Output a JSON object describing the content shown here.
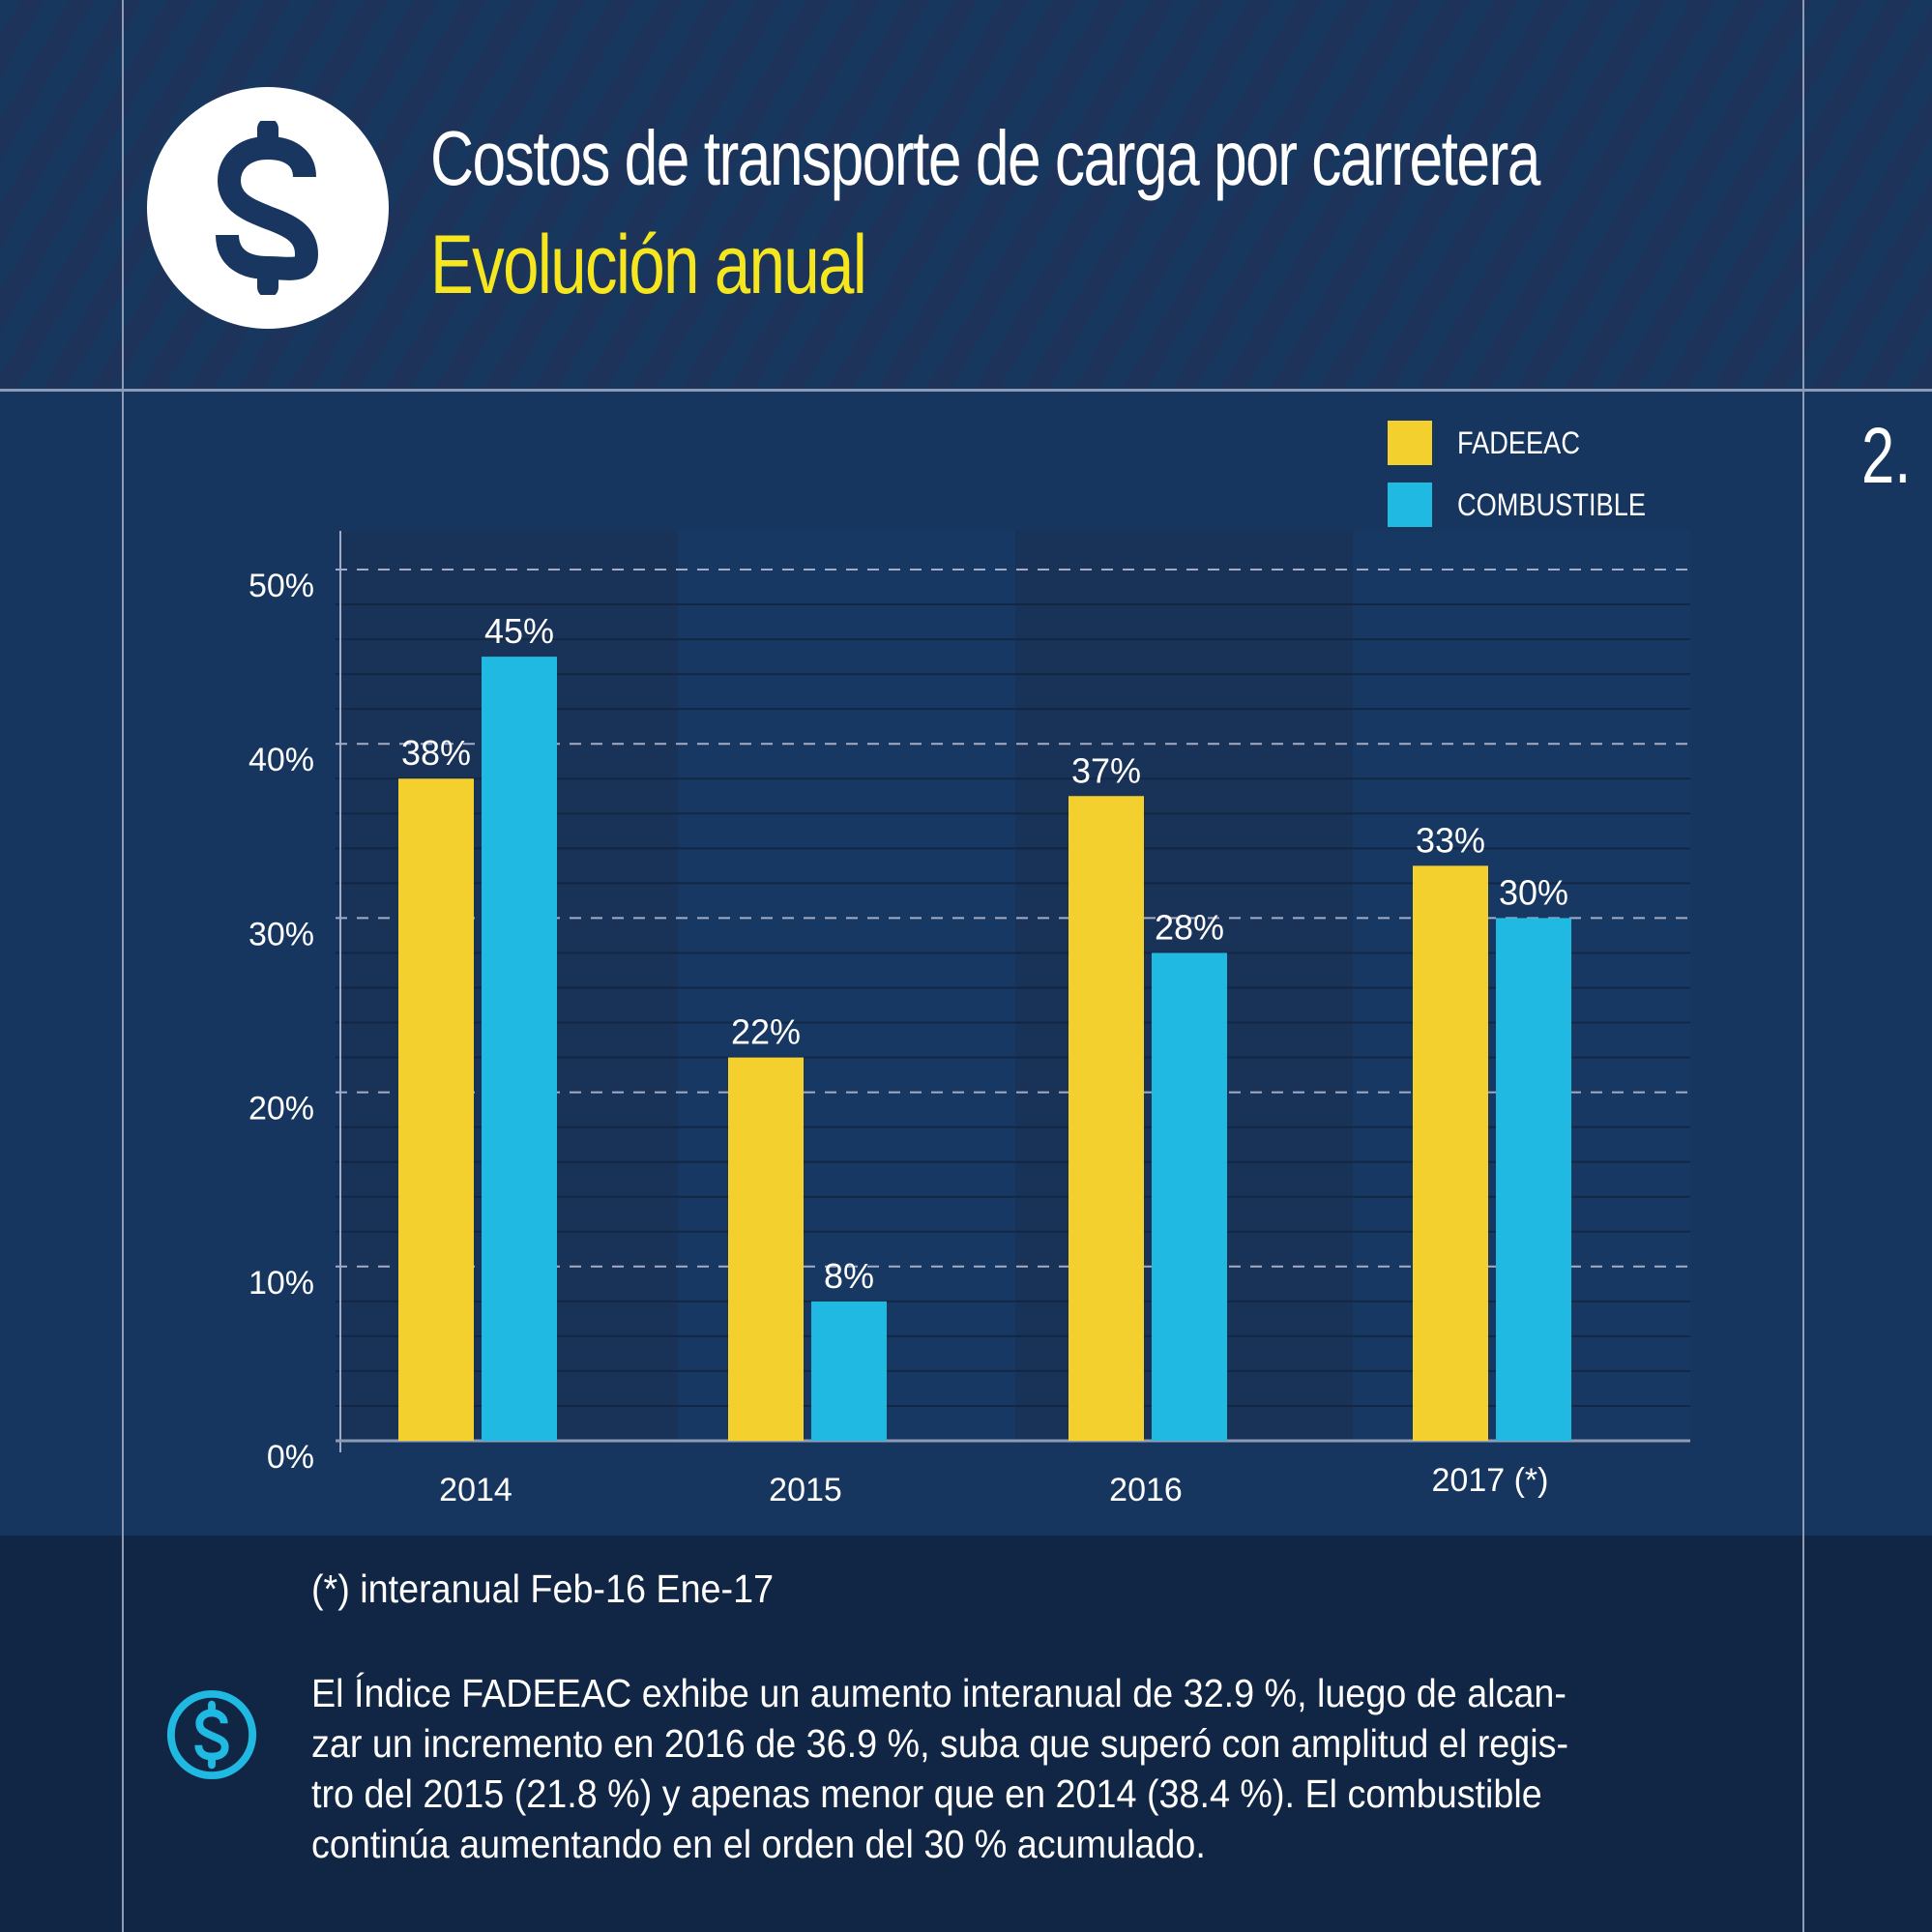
{
  "header": {
    "title": "Costos de transporte de carga por carretera",
    "subtitle": "Evolución anual",
    "logo_icon": "dollar-circle-icon",
    "page_number": "2."
  },
  "colors": {
    "fadeeac": "#f4d02e",
    "combustible": "#1fb9e2",
    "title_accent": "#f5e61f",
    "background": "#163660"
  },
  "chart_data": {
    "type": "bar",
    "title": "Costos de transporte de carga por carretera — Evolución anual",
    "categories": [
      "2014",
      "2015",
      "2016",
      "2017 (*)"
    ],
    "series": [
      {
        "name": "FADEEAC",
        "values": [
          38,
          22,
          37,
          33
        ],
        "labels": [
          "38%",
          "22%",
          "37%",
          "33%"
        ]
      },
      {
        "name": "COMBUSTIBLE",
        "values": [
          45,
          8,
          28,
          30
        ],
        "labels": [
          "45%",
          "8%",
          "28%",
          "30%"
        ]
      }
    ],
    "xlabel": "",
    "ylabel": "",
    "ylim": [
      0,
      50
    ],
    "yticks": [
      0,
      10,
      20,
      30,
      40,
      50
    ],
    "ytick_labels": [
      "0%",
      "10%",
      "20%",
      "30%",
      "40%",
      "50%"
    ],
    "grid": true,
    "legend": {
      "position": "top-right",
      "entries": [
        "FADEEAC",
        "COMBUSTIBLE"
      ]
    }
  },
  "footer": {
    "footnote": "(*) interanual Feb-16 Ene-17",
    "icon": "dollar-circle-icon",
    "description_lines": [
      "El Índice FADEEAC exhibe un aumento interanual de 32.9 %, luego de alcan-",
      "zar un incremento en 2016 de 36.9 %, suba que superó con amplitud el regis-",
      "tro del 2015 (21.8 %) y apenas menor que en 2014 (38.4 %). El combustible",
      "continúa aumentando en el orden del 30 % acumulado."
    ]
  }
}
